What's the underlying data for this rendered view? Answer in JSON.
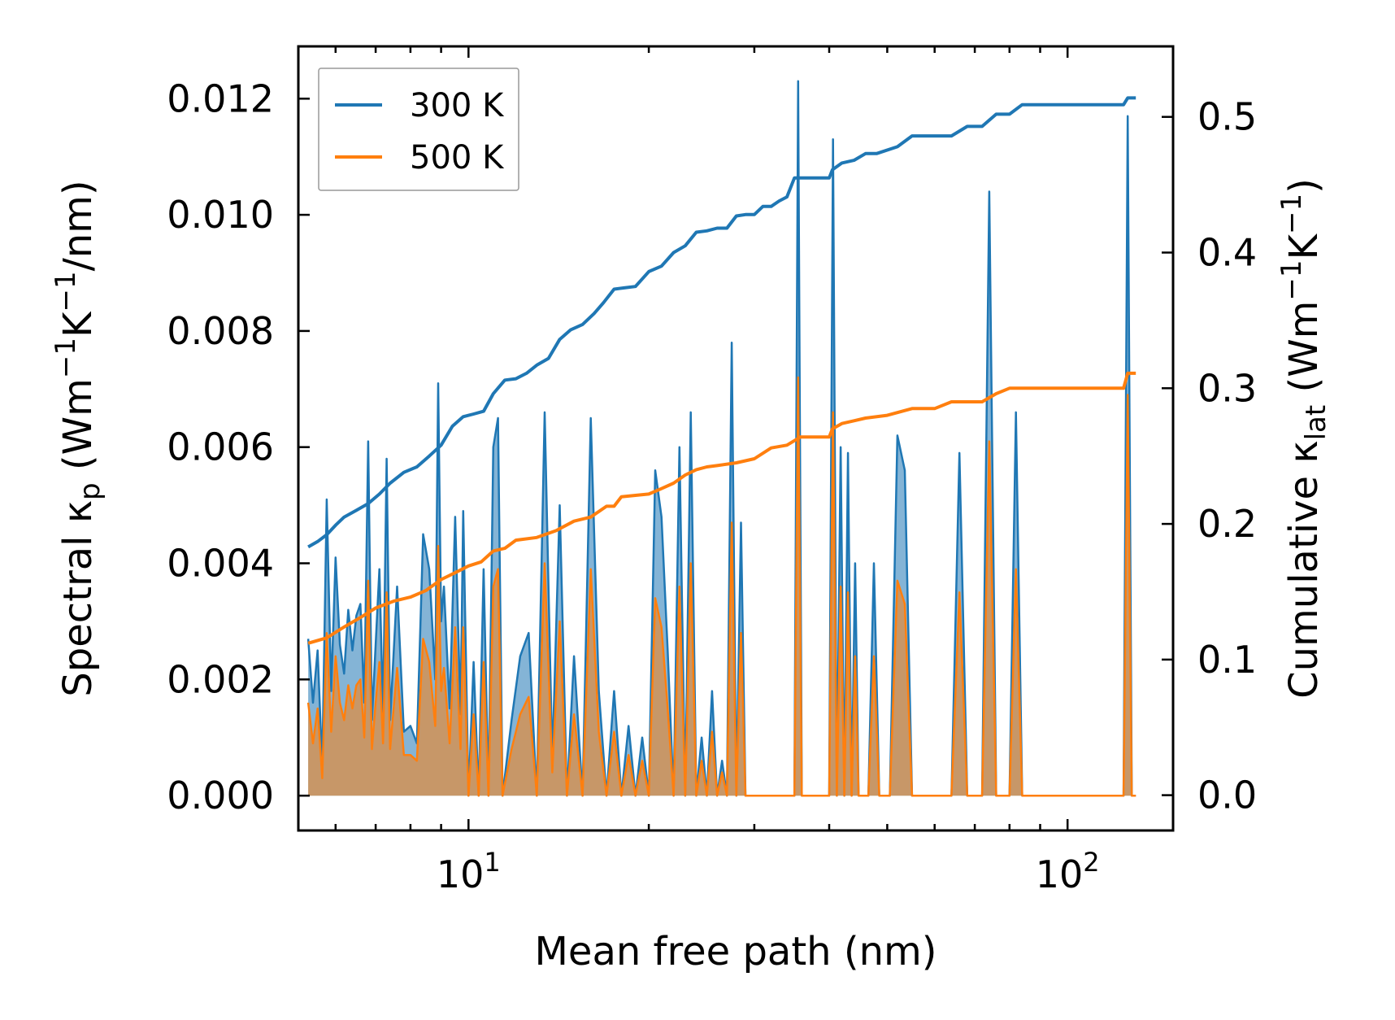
{
  "chart_data": {
    "type": "line",
    "x_scale": "log",
    "xlabel": "Mean free path (nm)",
    "ylabel_left_parts": [
      "Spectral κ",
      "p",
      " (Wm",
      "−1",
      "K",
      "−1",
      "/nm)"
    ],
    "ylabel_right_parts": [
      "Cumulative κ",
      "lat",
      " (Wm",
      "−1",
      "K",
      "−1",
      ")"
    ],
    "xlim": [
      5.2,
      150
    ],
    "ylim_left": [
      -0.0006,
      0.0129
    ],
    "ylim_right": [
      -0.026,
      0.552
    ],
    "x_tick_labels": [
      {
        "value": 10,
        "base": "10",
        "exp": "1"
      },
      {
        "value": 100,
        "base": "10",
        "exp": "2"
      }
    ],
    "y_left_ticks": [
      0.0,
      0.002,
      0.004,
      0.006,
      0.008,
      0.01,
      0.012
    ],
    "y_left_tick_labels": [
      "0.000",
      "0.002",
      "0.004",
      "0.006",
      "0.008",
      "0.010",
      "0.012"
    ],
    "y_right_ticks": [
      0.0,
      0.1,
      0.2,
      0.3,
      0.4,
      0.5
    ],
    "y_right_tick_labels": [
      "0.0",
      "0.1",
      "0.2",
      "0.3",
      "0.4",
      "0.5"
    ],
    "legend": {
      "position": "top-left",
      "entries": [
        "300 K",
        "500 K"
      ]
    },
    "series": [
      {
        "name": "300 K",
        "color": "#1f77b4",
        "cumulative": {
          "x": [
            5.4,
            5.6,
            5.8,
            6.0,
            6.2,
            6.5,
            6.8,
            7.1,
            7.4,
            7.8,
            8.2,
            8.6,
            9.0,
            9.4,
            9.8,
            10.2,
            10.6,
            11.0,
            11.5,
            12.0,
            12.5,
            13.0,
            13.6,
            14.2,
            14.8,
            15.5,
            16.2,
            16.8,
            17.5,
            18.2,
            19.0,
            20.0,
            21.0,
            22.0,
            23.0,
            24.0,
            25.0,
            26.0,
            27.0,
            28.0,
            29.0,
            30.0,
            31.0,
            32.0,
            33.0,
            34.0,
            35.0,
            35.8,
            36.5,
            40.0,
            40.5,
            42.0,
            44.0,
            46.0,
            48.0,
            52.0,
            55.0,
            60.0,
            64.0,
            68.0,
            72.0,
            76.0,
            80.0,
            84.0,
            88.0,
            100.0,
            110.0,
            118.0,
            124.0,
            126.0,
            130.0
          ],
          "y": [
            0.183,
            0.187,
            0.192,
            0.199,
            0.205,
            0.21,
            0.215,
            0.222,
            0.23,
            0.238,
            0.242,
            0.25,
            0.258,
            0.272,
            0.279,
            0.281,
            0.283,
            0.296,
            0.306,
            0.307,
            0.311,
            0.317,
            0.322,
            0.336,
            0.343,
            0.347,
            0.355,
            0.363,
            0.373,
            0.374,
            0.375,
            0.386,
            0.39,
            0.4,
            0.405,
            0.415,
            0.416,
            0.418,
            0.418,
            0.427,
            0.428,
            0.428,
            0.434,
            0.434,
            0.438,
            0.441,
            0.455,
            0.455,
            0.455,
            0.455,
            0.461,
            0.466,
            0.468,
            0.473,
            0.473,
            0.478,
            0.486,
            0.486,
            0.486,
            0.493,
            0.493,
            0.502,
            0.502,
            0.509,
            0.509,
            0.509,
            0.509,
            0.509,
            0.509,
            0.514,
            0.514
          ]
        },
        "spectral": {
          "x": [
            5.4,
            5.5,
            5.6,
            5.7,
            5.8,
            5.9,
            6.0,
            6.1,
            6.2,
            6.3,
            6.4,
            6.5,
            6.6,
            6.7,
            6.8,
            6.9,
            7.0,
            7.1,
            7.2,
            7.3,
            7.4,
            7.6,
            7.8,
            8.0,
            8.2,
            8.4,
            8.6,
            8.8,
            8.9,
            9.0,
            9.1,
            9.3,
            9.5,
            9.7,
            9.8,
            10.0,
            10.2,
            10.4,
            10.6,
            10.8,
            11.0,
            11.2,
            11.4,
            11.8,
            12.2,
            12.6,
            13.0,
            13.4,
            13.8,
            14.2,
            14.6,
            15.0,
            15.5,
            16.0,
            16.5,
            17.0,
            17.5,
            18.0,
            18.5,
            19.0,
            19.5,
            20.0,
            20.5,
            21.0,
            21.5,
            22.0,
            22.5,
            23.0,
            23.5,
            24.0,
            24.5,
            25.0,
            25.5,
            26.0,
            26.5,
            27.0,
            27.5,
            28.0,
            28.5,
            29.0,
            29.5,
            30.0,
            30.5,
            31.0,
            31.5,
            32.0,
            33.0,
            34.0,
            35.0,
            35.5,
            36.0,
            36.5,
            37.0,
            40.0,
            40.6,
            41.2,
            41.8,
            42.4,
            43.0,
            43.6,
            44.2,
            44.8,
            45.5,
            46.5,
            47.5,
            48.5,
            49.5,
            50.5,
            52.0,
            53.5,
            55.0,
            56.5,
            58.0,
            64.0,
            66.0,
            68.0,
            70.0,
            72.0,
            74.0,
            76.0,
            78.0,
            80.0,
            82.0,
            84.0,
            86.0,
            118.0,
            122.0,
            124.0,
            126.0,
            128.0,
            130.0
          ],
          "y": [
            0.0027,
            0.0016,
            0.0025,
            0.0005,
            0.0051,
            0.0018,
            0.0041,
            0.0026,
            0.0021,
            0.0032,
            0.0025,
            0.0031,
            0.0033,
            0.0016,
            0.0061,
            0.0013,
            0.0026,
            0.0039,
            0.0014,
            0.0058,
            0.0013,
            0.0036,
            0.0011,
            0.0012,
            0.0009,
            0.0045,
            0.0039,
            0.002,
            0.0071,
            0.003,
            0.0036,
            0.0015,
            0.0048,
            0.0014,
            0.0049,
            0.0,
            0.0023,
            0.0,
            0.0039,
            0.0,
            0.006,
            0.0065,
            0.0,
            0.0013,
            0.0024,
            0.0028,
            0.0,
            0.0066,
            0.0006,
            0.005,
            0.0,
            0.0024,
            0.0,
            0.0065,
            0.0018,
            0.0,
            0.0018,
            0.0,
            0.0012,
            0.0,
            0.001,
            0.0,
            0.0056,
            0.0048,
            0.0025,
            0.0,
            0.006,
            0.0,
            0.0066,
            0.0,
            0.001,
            0.0,
            0.0018,
            0.0,
            0.0006,
            0.0,
            0.0078,
            0.0,
            0.0047,
            0.0,
            0.0,
            0.0,
            0.0,
            0.0,
            0.0,
            0.0,
            0.0,
            0.0,
            0.0,
            0.0123,
            0.0,
            0.0,
            0.0,
            0.0,
            0.0113,
            0.0,
            0.006,
            0.0,
            0.0059,
            0.0,
            0.004,
            0.0,
            0.0,
            0.0,
            0.004,
            0.0,
            0.0,
            0.0,
            0.0062,
            0.0056,
            0.0,
            0.0,
            0.0,
            0.0,
            0.0059,
            0.0,
            0.0,
            0.0,
            0.0104,
            0.0,
            0.0,
            0.0,
            0.0066,
            0.0,
            0.0,
            0.0,
            0.0,
            0.0,
            0.0117,
            0.0,
            0.0
          ]
        }
      },
      {
        "name": "500 K",
        "color": "#ff7f0e",
        "cumulative": {
          "x": [
            5.4,
            5.8,
            6.2,
            6.6,
            7.0,
            7.5,
            8.0,
            8.5,
            9.0,
            9.5,
            10.0,
            10.5,
            11.0,
            11.5,
            12.0,
            13.0,
            14.0,
            15.0,
            16.0,
            17.0,
            17.5,
            18.0,
            19.0,
            20.0,
            21.0,
            22.0,
            23.0,
            24.0,
            25.0,
            26.0,
            28.0,
            30.0,
            32.0,
            34.0,
            35.8,
            36.5,
            40.0,
            40.5,
            42.0,
            44.0,
            46.0,
            50.0,
            55.0,
            60.0,
            64.0,
            72.0,
            76.0,
            80.0,
            100.0,
            124.0,
            126.0,
            130.0
          ],
          "y": [
            0.112,
            0.116,
            0.124,
            0.131,
            0.138,
            0.143,
            0.146,
            0.151,
            0.159,
            0.164,
            0.169,
            0.172,
            0.18,
            0.182,
            0.188,
            0.19,
            0.195,
            0.202,
            0.205,
            0.213,
            0.213,
            0.22,
            0.221,
            0.222,
            0.226,
            0.23,
            0.236,
            0.24,
            0.242,
            0.243,
            0.245,
            0.248,
            0.256,
            0.258,
            0.264,
            0.264,
            0.264,
            0.27,
            0.274,
            0.276,
            0.278,
            0.28,
            0.285,
            0.285,
            0.29,
            0.29,
            0.296,
            0.3,
            0.3,
            0.3,
            0.311,
            0.311
          ]
        },
        "spectral": {
          "x": [
            5.4,
            5.5,
            5.6,
            5.7,
            5.8,
            5.9,
            6.0,
            6.1,
            6.2,
            6.3,
            6.4,
            6.5,
            6.6,
            6.7,
            6.8,
            6.9,
            7.0,
            7.1,
            7.2,
            7.3,
            7.4,
            7.6,
            7.8,
            8.0,
            8.2,
            8.4,
            8.6,
            8.8,
            8.9,
            9.0,
            9.1,
            9.3,
            9.5,
            9.7,
            9.8,
            10.0,
            10.2,
            10.4,
            10.6,
            10.8,
            11.0,
            11.2,
            11.4,
            11.8,
            12.2,
            12.6,
            13.0,
            13.4,
            13.8,
            14.2,
            14.6,
            15.0,
            15.5,
            16.0,
            16.5,
            17.0,
            17.5,
            18.0,
            18.5,
            19.0,
            19.5,
            20.0,
            20.5,
            21.0,
            21.5,
            22.0,
            22.5,
            23.0,
            23.5,
            24.0,
            24.5,
            25.0,
            25.5,
            26.0,
            26.5,
            27.0,
            27.5,
            28.0,
            28.5,
            29.0,
            29.5,
            30.0,
            30.5,
            31.0,
            31.5,
            32.0,
            33.0,
            34.0,
            35.0,
            35.5,
            36.0,
            36.5,
            37.0,
            40.0,
            40.6,
            41.2,
            41.8,
            42.4,
            43.0,
            43.6,
            44.2,
            44.8,
            45.5,
            46.5,
            47.5,
            48.5,
            49.5,
            50.5,
            52.0,
            53.5,
            55.0,
            56.5,
            58.0,
            64.0,
            66.0,
            68.0,
            70.0,
            72.0,
            74.0,
            76.0,
            78.0,
            80.0,
            82.0,
            84.0,
            86.0,
            118.0,
            122.0,
            124.0,
            126.0,
            128.0,
            130.0
          ],
          "y": [
            0.0016,
            0.0009,
            0.0015,
            0.0003,
            0.0028,
            0.0011,
            0.0024,
            0.0016,
            0.0013,
            0.0019,
            0.0015,
            0.0019,
            0.002,
            0.001,
            0.0037,
            0.0008,
            0.0016,
            0.0023,
            0.0009,
            0.0035,
            0.0008,
            0.0022,
            0.0007,
            0.0007,
            0.0006,
            0.0027,
            0.0023,
            0.0012,
            0.0043,
            0.0018,
            0.0022,
            0.0009,
            0.0029,
            0.0008,
            0.0029,
            0.0,
            0.0014,
            0.0,
            0.0023,
            0.0,
            0.0036,
            0.0039,
            0.0,
            0.0008,
            0.0014,
            0.0017,
            0.0,
            0.004,
            0.0004,
            0.003,
            0.0,
            0.0014,
            0.0,
            0.0039,
            0.0011,
            0.0,
            0.0011,
            0.0,
            0.0007,
            0.0,
            0.0006,
            0.0,
            0.0034,
            0.0029,
            0.0015,
            0.0,
            0.0036,
            0.0,
            0.004,
            0.0,
            0.0006,
            0.0,
            0.0011,
            0.0,
            0.0004,
            0.0,
            0.0047,
            0.0,
            0.0028,
            0.0,
            0.0,
            0.0,
            0.0,
            0.0,
            0.0,
            0.0,
            0.0,
            0.0,
            0.0,
            0.0072,
            0.0,
            0.0,
            0.0,
            0.0,
            0.0066,
            0.0,
            0.0036,
            0.0,
            0.0035,
            0.0,
            0.0024,
            0.0,
            0.0,
            0.0,
            0.0024,
            0.0,
            0.0,
            0.0,
            0.0037,
            0.0033,
            0.0,
            0.0,
            0.0,
            0.0,
            0.0035,
            0.0,
            0.0,
            0.0,
            0.0061,
            0.0,
            0.0,
            0.0,
            0.0039,
            0.0,
            0.0,
            0.0,
            0.0,
            0.0,
            0.0069,
            0.0,
            0.0
          ]
        }
      }
    ]
  }
}
